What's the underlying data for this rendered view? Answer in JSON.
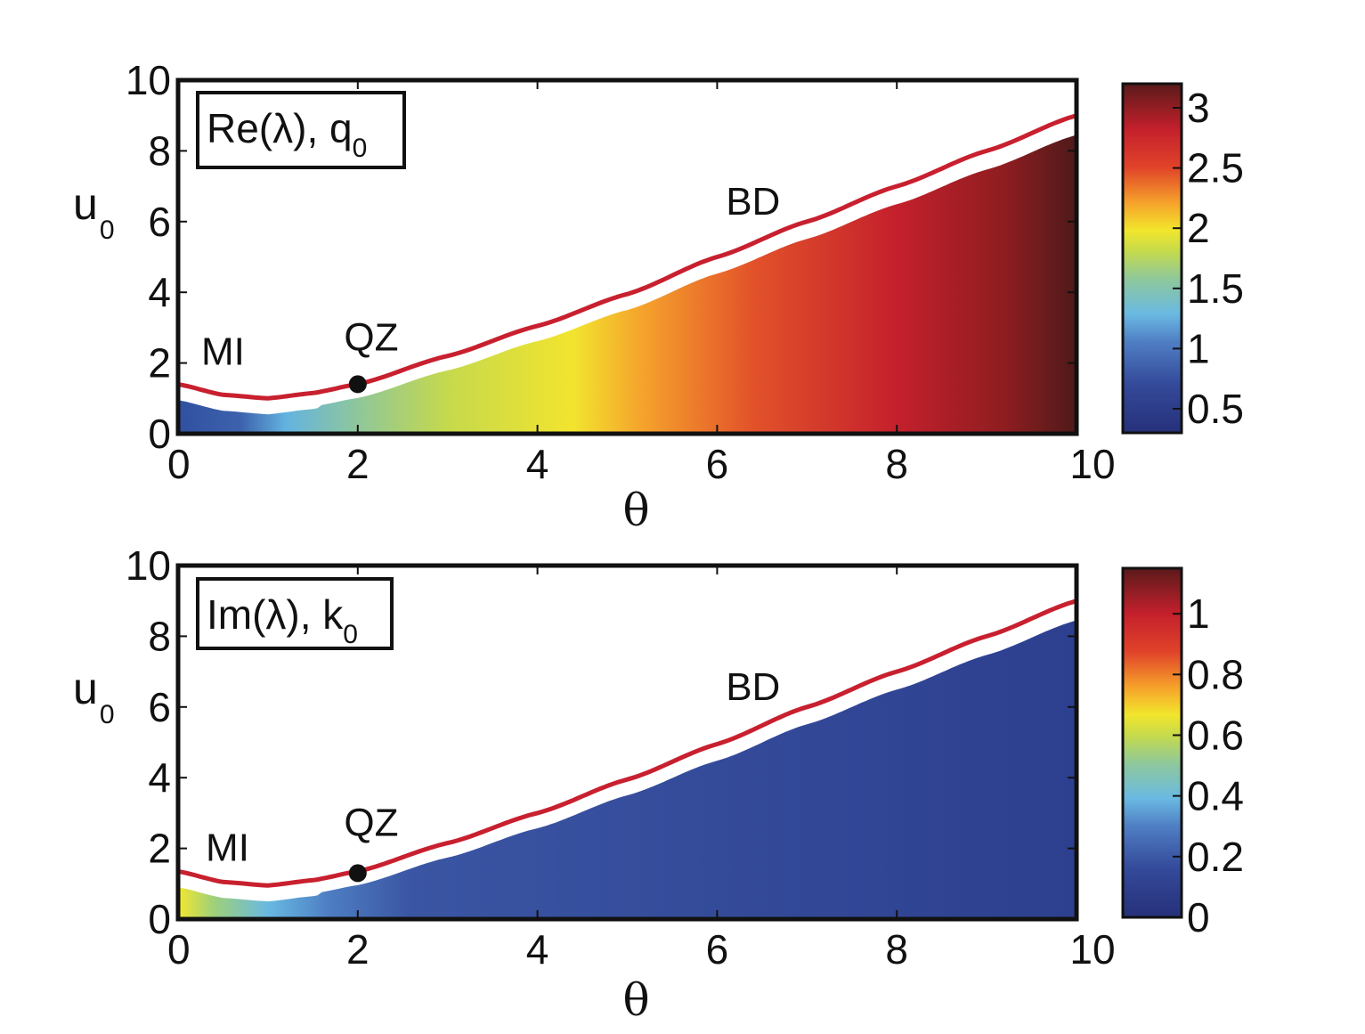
{
  "chart_data": [
    {
      "type": "heatmap",
      "id": "top",
      "legend_box": {
        "main": "Re(λ), q",
        "sub": "0"
      },
      "xlabel": "θ",
      "ylabel": {
        "main": "u",
        "sub": "0"
      },
      "xlim": [
        0,
        10
      ],
      "ylim": [
        0,
        10
      ],
      "xticks": [
        "0",
        "2",
        "4",
        "6",
        "8",
        "10"
      ],
      "yticks": [
        "0",
        "2",
        "4",
        "6",
        "8",
        "10"
      ],
      "colorbar": {
        "range": [
          0.3,
          3.2
        ],
        "ticks": [
          {
            "value": 0.5,
            "label": "0.5"
          },
          {
            "value": 1,
            "label": "1"
          },
          {
            "value": 1.5,
            "label": "1.5"
          },
          {
            "value": 2,
            "label": "2"
          },
          {
            "value": 2.5,
            "label": "2.5"
          },
          {
            "value": 3,
            "label": "3"
          }
        ]
      },
      "boundary_curve": {
        "color": "#c8202f",
        "points": [
          [
            0,
            1.4
          ],
          [
            0.5,
            1.1
          ],
          [
            1,
            1.0
          ],
          [
            1.5,
            1.15
          ],
          [
            2,
            1.4
          ],
          [
            3,
            2.2
          ],
          [
            4,
            3.05
          ],
          [
            5,
            3.95
          ],
          [
            6,
            5.0
          ],
          [
            7,
            6.0
          ],
          [
            8,
            7.0
          ],
          [
            9,
            8.0
          ],
          [
            10,
            9.0
          ]
        ]
      },
      "annotations": [
        {
          "text": "MI",
          "x": 0.5,
          "y": 1.95
        },
        {
          "text": "QZ",
          "x": 2.15,
          "y": 2.35
        },
        {
          "text": "BD",
          "x": 6.4,
          "y": 6.2
        }
      ],
      "marker": {
        "x": 2.0,
        "y": 1.4
      }
    },
    {
      "type": "heatmap",
      "id": "bottom",
      "legend_box": {
        "main": "Im(λ), k",
        "sub": "0"
      },
      "xlabel": "θ",
      "ylabel": {
        "main": "u",
        "sub": "0"
      },
      "xlim": [
        0,
        10
      ],
      "ylim": [
        0,
        10
      ],
      "xticks": [
        "0",
        "2",
        "4",
        "6",
        "8",
        "10"
      ],
      "yticks": [
        "0",
        "2",
        "4",
        "6",
        "8",
        "10"
      ],
      "colorbar": {
        "range": [
          0,
          1.15
        ],
        "ticks": [
          {
            "value": 0,
            "label": "0"
          },
          {
            "value": 0.2,
            "label": "0.2"
          },
          {
            "value": 0.4,
            "label": "0.4"
          },
          {
            "value": 0.6,
            "label": "0.6"
          },
          {
            "value": 0.8,
            "label": "0.8"
          },
          {
            "value": 1,
            "label": "1"
          }
        ]
      },
      "boundary_curve": {
        "color": "#c8202f",
        "points": [
          [
            0,
            1.35
          ],
          [
            0.5,
            1.05
          ],
          [
            1,
            0.95
          ],
          [
            1.5,
            1.1
          ],
          [
            2,
            1.35
          ],
          [
            3,
            2.15
          ],
          [
            4,
            3.0
          ],
          [
            5,
            3.95
          ],
          [
            6,
            4.95
          ],
          [
            7,
            6.0
          ],
          [
            8,
            7.0
          ],
          [
            9,
            8.0
          ],
          [
            10,
            9.0
          ]
        ]
      },
      "annotations": [
        {
          "text": "MI",
          "x": 0.55,
          "y": 1.65
        },
        {
          "text": "QZ",
          "x": 2.15,
          "y": 2.35
        },
        {
          "text": "BD",
          "x": 6.4,
          "y": 6.2
        }
      ],
      "marker": {
        "x": 2.0,
        "y": 1.3
      }
    }
  ]
}
